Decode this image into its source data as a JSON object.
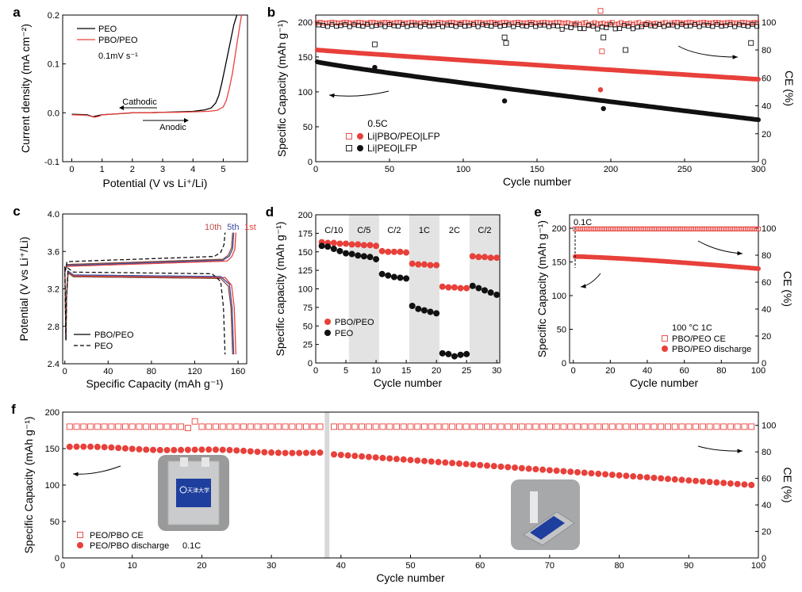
{
  "chart_data": [
    {
      "id": "a",
      "type": "line",
      "panel_label": "a",
      "xlabel": "Potential (V vs Li⁺/Li)",
      "ylabel": "Current density (mA cm⁻²)",
      "xlim": [
        -0.3,
        5.8
      ],
      "ylim": [
        -0.1,
        0.2
      ],
      "xticks": [
        0,
        1,
        2,
        3,
        4,
        5
      ],
      "yticks": [
        -0.1,
        0.0,
        0.1,
        0.2
      ],
      "ytick_labels": [
        "-0.1",
        "0.0",
        "0.1",
        "0.2"
      ],
      "legend": [
        "PEO",
        "PBO/PEO"
      ],
      "legend_note": "0.1mV s⁻¹",
      "annotations": [
        "Cathodic",
        "Anodic"
      ],
      "series": [
        {
          "name": "PEO",
          "color": "#000000",
          "x": [
            0,
            0.5,
            0.7,
            0.85,
            1.0,
            1.5,
            2.0,
            2.5,
            3.0,
            3.5,
            4.0,
            4.4,
            4.6,
            4.75,
            4.85,
            4.95,
            5.05,
            5.15,
            5.25,
            5.35,
            5.45
          ],
          "y": [
            -0.003,
            -0.004,
            -0.008,
            -0.006,
            -0.004,
            -0.002,
            0.0,
            0.0,
            0.001,
            0.002,
            0.003,
            0.006,
            0.01,
            0.02,
            0.035,
            0.06,
            0.09,
            0.12,
            0.15,
            0.18,
            0.2
          ]
        },
        {
          "name": "PBO/PEO",
          "color": "#e8403a",
          "x": [
            0,
            0.5,
            0.75,
            0.9,
            1.0,
            1.5,
            2.0,
            2.5,
            3.0,
            3.5,
            4.0,
            4.5,
            4.8,
            5.0,
            5.1,
            5.2,
            5.3,
            5.4,
            5.5,
            5.6
          ],
          "y": [
            -0.004,
            -0.005,
            -0.009,
            -0.007,
            -0.004,
            -0.002,
            0.0,
            0.0,
            0.001,
            0.001,
            0.002,
            0.003,
            0.005,
            0.012,
            0.025,
            0.05,
            0.08,
            0.12,
            0.16,
            0.2
          ]
        }
      ]
    },
    {
      "id": "b",
      "type": "scatter",
      "panel_label": "b",
      "xlabel": "Cycle number",
      "ylabel": "Specific Capacity (mAh g⁻¹)",
      "y2label": "CE (%)",
      "xlim": [
        0,
        300
      ],
      "ylim": [
        0,
        210
      ],
      "y2lim": [
        0,
        105
      ],
      "xticks": [
        0,
        50,
        100,
        150,
        200,
        250,
        300
      ],
      "yticks": [
        0,
        50,
        100,
        150,
        200
      ],
      "y2ticks": [
        0,
        20,
        40,
        60,
        80,
        100
      ],
      "legend_title": "0.5C",
      "legend": [
        "Li|PBO/PEO|LFP",
        "Li|PEO|LFP"
      ],
      "series": [
        {
          "name": "PBO/PEO capacity",
          "color": "#e8403a",
          "start": 160,
          "end": 118,
          "outliers": [
            [
              193,
              103
            ]
          ]
        },
        {
          "name": "PEO capacity",
          "color": "#111111",
          "start": 143,
          "end": 60,
          "outliers": [
            [
              40,
              135
            ],
            [
              128,
              87
            ],
            [
              195,
              76
            ]
          ]
        },
        {
          "name": "PBO/PEO CE",
          "color": "#e8403a",
          "value": 99.5,
          "outliers": [
            [
              193,
              108
            ],
            [
              194,
              79
            ]
          ]
        },
        {
          "name": "PEO CE",
          "color": "#111111",
          "value": 97.5,
          "outliers": [
            [
              40,
              84
            ],
            [
              128,
              89
            ],
            [
              129,
              85
            ],
            [
              195,
              89
            ],
            [
              210,
              80
            ],
            [
              295,
              85
            ]
          ]
        }
      ]
    },
    {
      "id": "c",
      "type": "line",
      "panel_label": "c",
      "xlabel": "Specific Capacity (mAh g⁻¹)",
      "ylabel": "Potential (V vs Li⁺/Li)",
      "xlim": [
        -2,
        168
      ],
      "ylim": [
        2.4,
        4.0
      ],
      "xticks": [
        0,
        40,
        80,
        120,
        160
      ],
      "yticks": [
        2.4,
        2.8,
        3.2,
        3.6,
        4.0
      ],
      "ytick_labels": [
        "2.4",
        "2.8",
        "3.2",
        "3.6",
        "4.0"
      ],
      "cycle_labels": [
        {
          "text": "10th",
          "color": "#c0504d"
        },
        {
          "text": "5th",
          "color": "#3b4fa0"
        },
        {
          "text": "1st",
          "color": "#e8403a"
        }
      ],
      "legend": [
        "PBO/PEO",
        "PEO"
      ],
      "series": [
        {
          "name": "PBO/PEO 1st",
          "color": "#e8403a",
          "qmax": 158,
          "charge": 3.44,
          "discharge": 3.34
        },
        {
          "name": "PBO/PEO 5th",
          "color": "#3b4fa0",
          "qmax": 156,
          "charge": 3.45,
          "discharge": 3.35
        },
        {
          "name": "PBO/PEO 10th",
          "color": "#8b4a3a",
          "qmax": 155,
          "charge": 3.46,
          "discharge": 3.33
        },
        {
          "name": "PEO",
          "color": "#111111",
          "qmax": 148,
          "charge": 3.49,
          "discharge": 3.38,
          "dashed": true
        }
      ]
    },
    {
      "id": "d",
      "type": "scatter",
      "panel_label": "d",
      "xlabel": "Cycle number",
      "ylabel": "Specific capacity (mAh g⁻¹)",
      "xlim": [
        0,
        30.5
      ],
      "ylim": [
        0,
        200
      ],
      "xticks": [
        0,
        5,
        10,
        15,
        20,
        25,
        30
      ],
      "yticks": [
        0,
        25,
        50,
        75,
        100,
        125,
        150,
        175,
        200
      ],
      "rate_labels": [
        "C/10",
        "C/5",
        "C/2",
        "1C",
        "2C",
        "C/2"
      ],
      "legend": [
        "PBO/PEO",
        "PEO"
      ],
      "series": [
        {
          "name": "PBO/PEO",
          "color": "#e8403a",
          "values": [
            163,
            162,
            162,
            161,
            161,
            160,
            160,
            159,
            159,
            158,
            151,
            150,
            150,
            150,
            149,
            134,
            133,
            133,
            132,
            132,
            103,
            102,
            102,
            101,
            101,
            144,
            143,
            143,
            142,
            142
          ]
        },
        {
          "name": "PEO",
          "color": "#111111",
          "values": [
            158,
            157,
            154,
            151,
            148,
            147,
            145,
            144,
            143,
            140,
            120,
            118,
            116,
            115,
            114,
            77,
            73,
            71,
            69,
            67,
            13,
            12,
            9,
            11,
            12,
            104,
            101,
            98,
            95,
            92
          ]
        }
      ]
    },
    {
      "id": "e",
      "type": "scatter",
      "panel_label": "e",
      "xlabel": "Cycle number",
      "ylabel": "Specific Capacity (mAh g⁻¹)",
      "y2label": "CE (%)",
      "xlim": [
        -2,
        100
      ],
      "ylim": [
        0,
        220
      ],
      "y2lim": [
        0,
        110
      ],
      "xticks": [
        0,
        20,
        40,
        60,
        80,
        100
      ],
      "yticks": [
        0,
        50,
        100,
        150,
        200
      ],
      "y2ticks": [
        0,
        20,
        40,
        60,
        80,
        100
      ],
      "rate_label": "0.1C",
      "legend_title": "100 °C   1C",
      "legend": [
        "PBO/PEO CE",
        "PBO/PEO discharge"
      ],
      "series": [
        {
          "name": "PBO/PEO CE",
          "color": "#e8403a",
          "value": 99.5
        },
        {
          "name": "PBO/PEO discharge",
          "color": "#e8403a",
          "start": 158,
          "end": 140
        }
      ]
    },
    {
      "id": "f",
      "type": "scatter",
      "panel_label": "f",
      "xlabel": "Cycle number",
      "ylabel": "Specific Capacity (mAh g⁻¹)",
      "y2label": "CE (%)",
      "xlim": [
        0,
        100
      ],
      "ylim": [
        0,
        200
      ],
      "y2lim": [
        0,
        110
      ],
      "xticks": [
        0,
        10,
        20,
        30,
        40,
        50,
        60,
        70,
        80,
        90,
        100
      ],
      "yticks": [
        0,
        50,
        100,
        150,
        200
      ],
      "y2ticks": [
        0,
        20,
        40,
        60,
        80,
        100
      ],
      "legend": [
        "PEO/PBO CE",
        "PEO/PBO discharge"
      ],
      "legend_note": "0.1C",
      "series": [
        {
          "name": "PEO/PBO CE",
          "color": "#e8403a",
          "value": 99.0,
          "outliers": [
            [
              18,
              98
            ],
            [
              19,
              103
            ]
          ]
        },
        {
          "name": "PEO/PBO discharge",
          "color": "#e8403a",
          "start": 152,
          "mid": 144,
          "end": 100
        }
      ],
      "gap_cycle": 38,
      "photo_left_text": "天津大学"
    }
  ]
}
